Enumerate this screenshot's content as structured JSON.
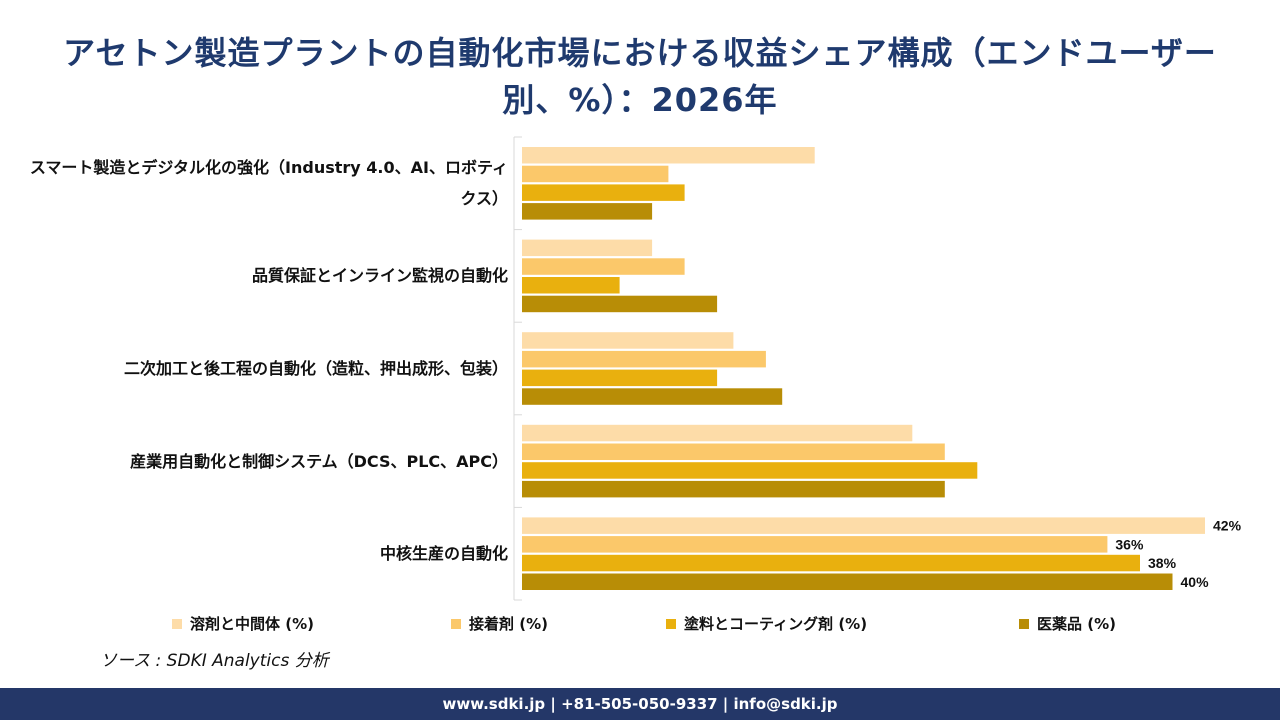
{
  "title": "アセトン製造プラントの自動化市場における収益シェア構成（エンドユーザー別、%）：2026年",
  "source": "ソース : SDKI Analytics 分析",
  "footer": "www.sdki.jp | +81-505-050-9337 | info@sdki.jp",
  "chart_data": {
    "type": "bar",
    "orientation": "horizontal",
    "grouped": true,
    "categories": [
      "スマート製造とデジタル化の強化（Industry 4.0、AI、ロボティクス）",
      "品質保証とインライン監視の自動化",
      "二次加工と後工程の自動化（造粒、押出成形、包装）",
      "産業用自動化と制御システム（DCS、PLC、APC）",
      "中核生産の自動化"
    ],
    "series": [
      {
        "name": "溶剤と中間体 (%)",
        "color": "#fddca8",
        "values": [
          18,
          8,
          13,
          24,
          42
        ]
      },
      {
        "name": "接着剤 (%)",
        "color": "#fbc86a",
        "values": [
          9,
          10,
          15,
          26,
          36
        ]
      },
      {
        "name": "塗料とコーティング剤 (%)",
        "color": "#e9b00e",
        "values": [
          10,
          6,
          12,
          28,
          38
        ]
      },
      {
        "name": "医薬品 (%)",
        "color": "#b88d06",
        "values": [
          8,
          12,
          16,
          26,
          40
        ]
      }
    ],
    "data_label_category_index": 4,
    "value_suffix": "%",
    "xlim": [
      0,
      45
    ],
    "grid": false,
    "legend_position": "bottom"
  }
}
